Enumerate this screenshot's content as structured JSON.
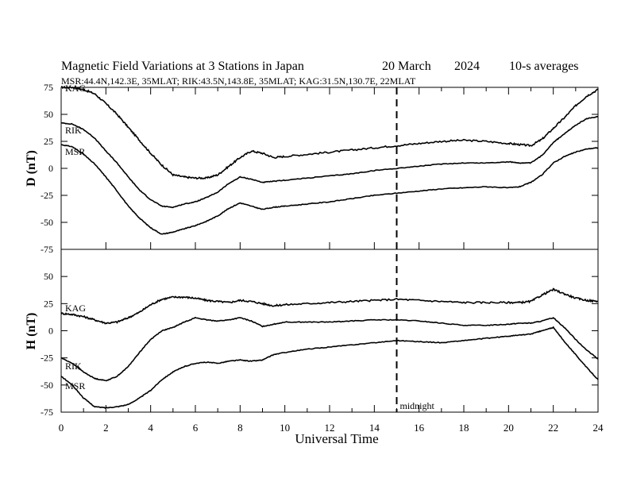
{
  "chart_data": {
    "type": "line",
    "title": "Magnetic Field Variations at 3 Stations in Japan",
    "date_label": "20 March",
    "year_label": "2024",
    "avg_label": "10-s averages",
    "subtitle": "MSR:44.4N,142.3E, 35MLAT;  RIK:43.5N,143.8E, 35MLAT;  KAG:31.5N,130.7E, 22MLAT",
    "xlabel": "Universal Time",
    "x_ticks": [
      "0",
      "2",
      "4",
      "6",
      "8",
      "10",
      "12",
      "14",
      "16",
      "18",
      "20",
      "22",
      "24"
    ],
    "xlim": [
      0,
      24
    ],
    "midnight_label": "midnight",
    "midnight_ut": 15,
    "panels": [
      {
        "name": "D",
        "ylabel": "D (nT)",
        "ylim": [
          -75,
          75
        ],
        "y_ticks": [
          "75",
          "50",
          "25",
          "0",
          "-25",
          "-50",
          "-75"
        ],
        "series": [
          {
            "name": "KAG",
            "x": [
              0,
              0.5,
              1,
              1.5,
              2,
              2.5,
              3,
              3.5,
              4,
              4.5,
              5,
              5.5,
              6,
              6.5,
              7,
              7.5,
              8,
              8.5,
              9,
              9.5,
              10,
              11,
              12,
              13,
              14,
              15,
              16,
              17,
              18,
              19,
              20,
              20.5,
              21,
              21.5,
              22,
              22.5,
              23,
              23.5,
              24
            ],
            "y": [
              75,
              75,
              73,
              69,
              60,
              50,
              38,
              26,
              14,
              3,
              -6,
              -8,
              -9,
              -9,
              -6,
              2,
              10,
              16,
              14,
              10,
              11,
              13,
              15,
              17,
              19,
              21,
              23,
              25,
              26,
              25,
              23,
              22,
              21,
              27,
              37,
              47,
              58,
              67,
              73
            ]
          },
          {
            "name": "RIK",
            "x": [
              0,
              0.5,
              1,
              1.5,
              2,
              2.5,
              3,
              3.5,
              4,
              4.5,
              5,
              5.5,
              6,
              6.5,
              7,
              7.5,
              8,
              8.5,
              9,
              9.5,
              10,
              11,
              12,
              13,
              14,
              15,
              16,
              17,
              18,
              19,
              20,
              20.5,
              21,
              21.5,
              22,
              22.5,
              23,
              23.5,
              24
            ],
            "y": [
              42,
              41,
              36,
              28,
              16,
              5,
              -8,
              -20,
              -29,
              -35,
              -36,
              -33,
              -31,
              -27,
              -22,
              -14,
              -8,
              -10,
              -13,
              -12,
              -11,
              -9,
              -7,
              -5,
              -2,
              0,
              2,
              4,
              5,
              5,
              6,
              5,
              5,
              12,
              24,
              32,
              40,
              46,
              48
            ]
          },
          {
            "name": "MSR",
            "x": [
              0,
              0.5,
              1,
              1.5,
              2,
              2.5,
              3,
              3.5,
              4,
              4.5,
              5,
              5.5,
              6,
              6.5,
              7,
              7.5,
              8,
              8.5,
              9,
              9.5,
              10,
              11,
              12,
              13,
              14,
              15,
              16,
              17,
              18,
              19,
              20,
              20.5,
              21,
              21.5,
              22,
              22.5,
              23,
              23.5,
              24
            ],
            "y": [
              22,
              20,
              13,
              4,
              -8,
              -21,
              -35,
              -46,
              -55,
              -61,
              -59,
              -56,
              -53,
              -49,
              -44,
              -37,
              -32,
              -35,
              -38,
              -36,
              -35,
              -33,
              -31,
              -28,
              -25,
              -23,
              -21,
              -19,
              -18,
              -17,
              -18,
              -17,
              -13,
              -6,
              5,
              11,
              15,
              18,
              19
            ]
          }
        ]
      },
      {
        "name": "H",
        "ylabel": "H (nT)",
        "ylim": [
          -75,
          75
        ],
        "y_ticks": [
          "50",
          "25",
          "0",
          "-25",
          "-50",
          "-75"
        ],
        "series": [
          {
            "name": "KAG",
            "x": [
              0,
              0.5,
              1,
              1.5,
              2,
              2.5,
              3,
              3.5,
              4,
              4.5,
              5,
              5.5,
              6,
              6.5,
              7,
              7.5,
              8,
              8.5,
              9,
              9.5,
              10,
              11,
              12,
              13,
              14,
              15,
              16,
              17,
              18,
              19,
              20,
              20.5,
              21,
              21.5,
              22,
              22.5,
              23,
              23.5,
              24
            ],
            "y": [
              16,
              15,
              13,
              10,
              7,
              8,
              12,
              17,
              24,
              29,
              31,
              31,
              30,
              28,
              27,
              26,
              28,
              27,
              25,
              23,
              24,
              25,
              26,
              27,
              28,
              29,
              28,
              27,
              26,
              26,
              26,
              26,
              27,
              33,
              38,
              34,
              30,
              28,
              27
            ]
          },
          {
            "name": "RIK",
            "x": [
              0,
              0.5,
              1,
              1.5,
              2,
              2.5,
              3,
              3.5,
              4,
              4.5,
              5,
              5.5,
              6,
              6.5,
              7,
              7.5,
              8,
              8.5,
              9,
              9.5,
              10,
              11,
              12,
              13,
              14,
              15,
              16,
              17,
              18,
              19,
              20,
              20.5,
              21,
              21.5,
              22,
              22.5,
              23,
              23.5,
              24
            ],
            "y": [
              -25,
              -30,
              -38,
              -44,
              -46,
              -42,
              -33,
              -20,
              -8,
              0,
              3,
              8,
              12,
              10,
              9,
              10,
              12,
              9,
              4,
              6,
              8,
              8,
              8,
              9,
              10,
              10,
              9,
              7,
              5,
              5,
              6,
              7,
              7,
              9,
              12,
              3,
              -8,
              -18,
              -26
            ]
          },
          {
            "name": "MSR",
            "x": [
              0,
              0.5,
              1,
              1.5,
              2,
              2.5,
              3,
              3.5,
              4,
              4.5,
              5,
              5.5,
              6,
              6.5,
              7,
              7.5,
              8,
              8.5,
              9,
              9.5,
              10,
              11,
              12,
              13,
              14,
              15,
              16,
              17,
              18,
              19,
              20,
              20.5,
              21,
              21.5,
              22,
              22.5,
              23,
              23.5,
              24
            ],
            "y": [
              -42,
              -50,
              -62,
              -70,
              -71,
              -70,
              -68,
              -62,
              -55,
              -45,
              -38,
              -33,
              -30,
              -29,
              -30,
              -28,
              -27,
              -28,
              -27,
              -22,
              -20,
              -17,
              -15,
              -13,
              -11,
              -9,
              -10,
              -11,
              -9,
              -7,
              -5,
              -4,
              -3,
              0,
              3,
              -10,
              -22,
              -34,
              -45
            ]
          }
        ]
      }
    ]
  }
}
